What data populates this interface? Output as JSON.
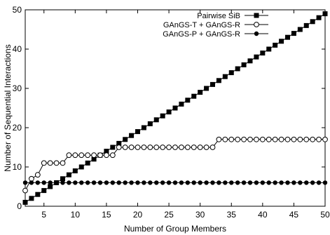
{
  "chart_data": {
    "type": "line",
    "title": "",
    "xlabel": "Number of Group Members",
    "ylabel": "Number of Sequential Interactions",
    "xlim": [
      2,
      50
    ],
    "ylim": [
      0,
      50
    ],
    "x_ticks": [
      "5",
      "10",
      "15",
      "20",
      "25",
      "30",
      "35",
      "40",
      "45",
      "50"
    ],
    "y_ticks": [
      "0",
      "10",
      "20",
      "30",
      "40",
      "50"
    ],
    "grid": false,
    "legend_position": "top-right",
    "x": [
      2,
      3,
      4,
      5,
      6,
      7,
      8,
      9,
      10,
      11,
      12,
      13,
      14,
      15,
      16,
      17,
      18,
      19,
      20,
      21,
      22,
      23,
      24,
      25,
      26,
      27,
      28,
      29,
      30,
      31,
      32,
      33,
      34,
      35,
      36,
      37,
      38,
      39,
      40,
      41,
      42,
      43,
      44,
      45,
      46,
      47,
      48,
      49,
      50
    ],
    "series": [
      {
        "name": "Pairwise SiB",
        "marker": "filled-square",
        "values": [
          1,
          2,
          3,
          4,
          5,
          6,
          7,
          8,
          9,
          10,
          11,
          12,
          13,
          14,
          15,
          16,
          17,
          18,
          19,
          20,
          21,
          22,
          23,
          24,
          25,
          26,
          27,
          28,
          29,
          30,
          31,
          32,
          33,
          34,
          35,
          36,
          37,
          38,
          39,
          40,
          41,
          42,
          43,
          44,
          45,
          46,
          47,
          48,
          49
        ]
      },
      {
        "name": "GAnGS-T + GAnGS-R",
        "marker": "open-circle",
        "values": [
          4,
          7,
          8,
          11,
          11,
          11,
          11,
          13,
          13,
          13,
          13,
          13,
          13,
          13,
          13,
          15,
          15,
          15,
          15,
          15,
          15,
          15,
          15,
          15,
          15,
          15,
          15,
          15,
          15,
          15,
          15,
          17,
          17,
          17,
          17,
          17,
          17,
          17,
          17,
          17,
          17,
          17,
          17,
          17,
          17,
          17,
          17,
          17,
          17
        ]
      },
      {
        "name": "GAnGS-P + GAnGS-R",
        "marker": "filled-circle",
        "values": [
          6,
          6,
          6,
          6,
          6,
          6,
          6,
          6,
          6,
          6,
          6,
          6,
          6,
          6,
          6,
          6,
          6,
          6,
          6,
          6,
          6,
          6,
          6,
          6,
          6,
          6,
          6,
          6,
          6,
          6,
          6,
          6,
          6,
          6,
          6,
          6,
          6,
          6,
          6,
          6,
          6,
          6,
          6,
          6,
          6,
          6,
          6,
          6,
          6
        ]
      }
    ]
  }
}
